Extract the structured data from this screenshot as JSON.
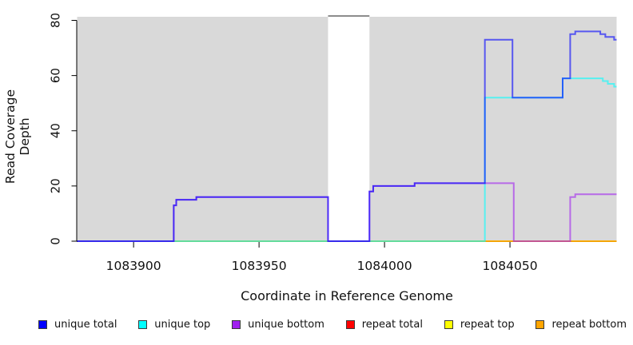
{
  "chart_data": {
    "type": "line",
    "subtype": "step-coverage",
    "title": "",
    "xlabel": "Coordinate in Reference Genome",
    "ylabel": "Read Coverage Depth",
    "xlim": [
      1083877.5,
      1084092.5
    ],
    "ylim": [
      0,
      81.3
    ],
    "x_ticks": [
      1083900,
      1083950,
      1084000,
      1084050
    ],
    "y_ticks": [
      0,
      20,
      40,
      60,
      80
    ],
    "grid": false,
    "panel_background": "#d9d9d9",
    "line_opacity": 0.6,
    "line_width": 2,
    "gap_region": {
      "x_start": 1083977.5,
      "x_end": 1083994,
      "fill": "#ffffff",
      "cap_color": "#8c8c8c"
    },
    "series": [
      {
        "name": "repeat total",
        "color": "#FF0000",
        "steps": [
          [
            1083877.5,
            0
          ]
        ]
      },
      {
        "name": "repeat top",
        "color": "#FFFF00",
        "steps": [
          [
            1083877.5,
            0
          ]
        ]
      },
      {
        "name": "repeat bottom",
        "color": "#FFA500",
        "steps": [
          [
            1083877.5,
            0
          ]
        ]
      },
      {
        "name": "unique top",
        "color": "#00FFFF",
        "steps": [
          [
            1083877.5,
            0
          ],
          [
            1084040,
            52
          ],
          [
            1084071,
            59
          ],
          [
            1084087,
            58
          ],
          [
            1084089,
            57
          ],
          [
            1084091.5,
            56
          ]
        ]
      },
      {
        "name": "unique bottom",
        "color": "#A020F0",
        "steps": [
          [
            1083877.5,
            0
          ],
          [
            1083916,
            13
          ],
          [
            1083917,
            15
          ],
          [
            1083925,
            16
          ],
          [
            1083977.5,
            0
          ],
          [
            1083994,
            18
          ],
          [
            1083995.5,
            20
          ],
          [
            1084012,
            21
          ],
          [
            1084051.5,
            0
          ],
          [
            1084074,
            16
          ],
          [
            1084076,
            17
          ]
        ]
      },
      {
        "name": "unique total",
        "color": "#0000FF",
        "steps": [
          [
            1083877.5,
            0
          ],
          [
            1083916,
            13
          ],
          [
            1083917,
            15
          ],
          [
            1083925,
            16
          ],
          [
            1083977.5,
            0
          ],
          [
            1083994,
            18
          ],
          [
            1083995.5,
            20
          ],
          [
            1084012,
            21
          ],
          [
            1084040,
            73
          ],
          [
            1084051,
            52
          ],
          [
            1084071,
            59
          ],
          [
            1084074,
            75
          ],
          [
            1084076,
            76
          ],
          [
            1084086,
            75
          ],
          [
            1084088,
            74
          ],
          [
            1084091.5,
            73
          ]
        ]
      }
    ]
  },
  "legend": {
    "items": [
      {
        "label": "unique total",
        "color": "#0000FF"
      },
      {
        "label": "unique top",
        "color": "#00FFFF"
      },
      {
        "label": "unique bottom",
        "color": "#A020F0"
      },
      {
        "label": "repeat total",
        "color": "#FF0000"
      },
      {
        "label": "repeat top",
        "color": "#FFFF00"
      },
      {
        "label": "repeat bottom",
        "color": "#FFA500"
      }
    ]
  }
}
